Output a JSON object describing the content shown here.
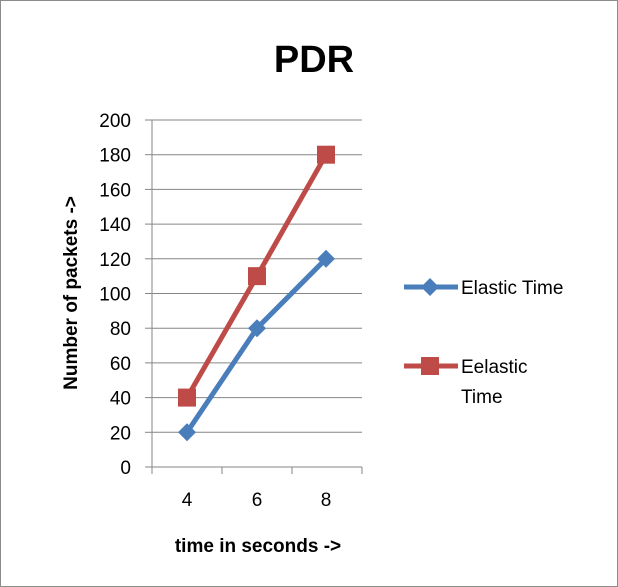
{
  "chart_data": {
    "type": "line",
    "title": "PDR",
    "xlabel": "time in seconds ->",
    "ylabel": "Number of packets ->",
    "categories": [
      "4",
      "6",
      "8"
    ],
    "ylim": [
      0,
      200
    ],
    "yticks": [
      0,
      20,
      40,
      60,
      80,
      100,
      120,
      140,
      160,
      180,
      200
    ],
    "grid": "horizontal",
    "legend_position": "right",
    "series": [
      {
        "name": "Elastic Time",
        "values": [
          20,
          80,
          120
        ],
        "color": "#4a7ebb",
        "marker": "diamond"
      },
      {
        "name": "Eelastic Time",
        "legend_lines": [
          "Eelastic",
          "Time"
        ],
        "values": [
          40,
          110,
          180
        ],
        "color": "#be4b48",
        "marker": "square"
      }
    ]
  }
}
